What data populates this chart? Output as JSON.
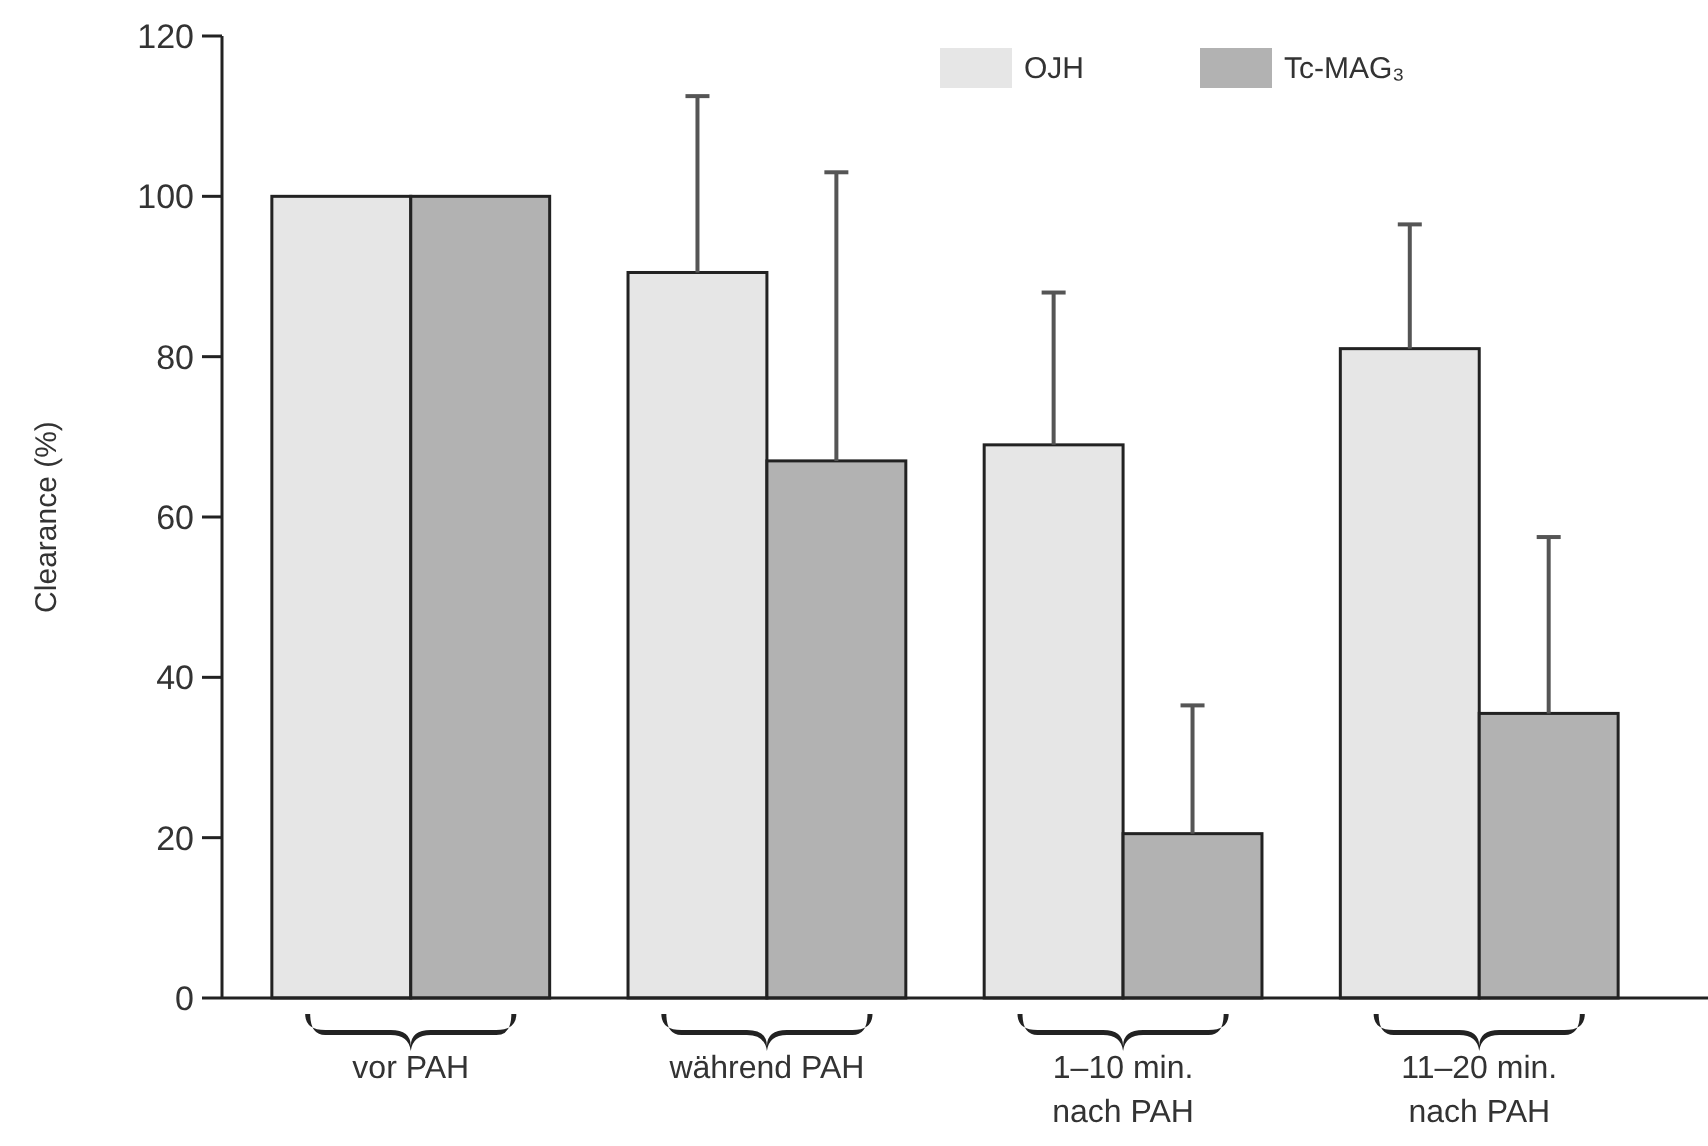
{
  "chart_data": {
    "type": "bar",
    "ylabel": "Clearance (%)",
    "categories": [
      "vor PAH",
      "während PAH",
      "1–10 min.\nnach PAH",
      "11–20 min.\nnach PAH"
    ],
    "series": [
      {
        "name": "OJH",
        "color": "#e6e6e6",
        "values": [
          100,
          90.5,
          69,
          81
        ],
        "errors": [
          null,
          [
            90.5,
            112.5
          ],
          [
            69,
            88
          ],
          [
            81,
            96.5
          ]
        ]
      },
      {
        "name": "Tc-MAG₃",
        "color": "#b2b2b2",
        "values": [
          100,
          67,
          20.5,
          35.5
        ],
        "errors": [
          null,
          [
            67,
            103
          ],
          [
            20.5,
            36.5
          ],
          [
            35.5,
            57.5
          ]
        ]
      }
    ],
    "ylim": [
      0,
      120
    ],
    "yticks": [
      0,
      20,
      40,
      60,
      80,
      100,
      120
    ],
    "grid": false,
    "legend": "top"
  }
}
